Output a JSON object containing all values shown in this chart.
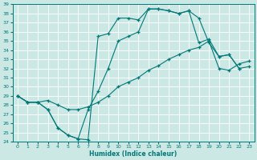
{
  "xlabel": "Humidex (Indice chaleur)",
  "background_color": "#cce8e4",
  "grid_color": "#b0d8d4",
  "line_color": "#007878",
  "xlim": [
    -0.5,
    23.5
  ],
  "ylim": [
    24,
    39
  ],
  "yticks": [
    24,
    25,
    26,
    27,
    28,
    29,
    30,
    31,
    32,
    33,
    34,
    35,
    36,
    37,
    38,
    39
  ],
  "xticks": [
    0,
    1,
    2,
    3,
    4,
    5,
    6,
    7,
    8,
    9,
    10,
    11,
    12,
    13,
    14,
    15,
    16,
    17,
    18,
    19,
    20,
    21,
    22,
    23
  ],
  "line1_x": [
    0,
    1,
    2,
    3,
    4,
    5,
    6,
    7,
    8,
    9,
    10,
    11,
    12,
    13,
    14,
    15,
    16,
    17,
    18,
    19,
    20,
    21,
    22
  ],
  "line1_y": [
    29.0,
    28.3,
    28.3,
    27.5,
    25.5,
    24.7,
    24.3,
    24.2,
    35.5,
    35.8,
    37.5,
    37.5,
    37.3,
    38.5,
    38.5,
    38.3,
    38.0,
    38.3,
    37.5,
    34.8,
    33.3,
    33.5,
    32.0
  ],
  "line2_x": [
    0,
    1,
    2,
    3,
    4,
    5,
    6,
    7,
    8,
    9,
    10,
    11,
    12,
    13,
    14,
    15,
    16,
    17,
    18,
    19,
    20,
    21,
    22,
    23
  ],
  "line2_y": [
    29.0,
    28.3,
    28.3,
    27.5,
    25.5,
    24.7,
    24.3,
    27.5,
    29.5,
    32.0,
    35.0,
    35.5,
    36.0,
    38.5,
    38.5,
    38.3,
    38.0,
    38.3,
    34.8,
    35.2,
    33.3,
    33.5,
    32.0,
    32.2
  ],
  "line3_x": [
    0,
    1,
    2,
    3,
    4,
    5,
    6,
    7,
    8,
    9,
    10,
    11,
    12,
    13,
    14,
    15,
    16,
    17,
    18,
    19,
    20,
    21,
    22,
    23
  ],
  "line3_y": [
    29.0,
    28.3,
    28.3,
    28.5,
    28.0,
    27.5,
    27.5,
    27.8,
    28.3,
    29.0,
    30.0,
    30.5,
    31.0,
    31.8,
    32.3,
    33.0,
    33.5,
    34.0,
    34.3,
    35.0,
    32.0,
    31.8,
    32.5,
    32.8
  ]
}
